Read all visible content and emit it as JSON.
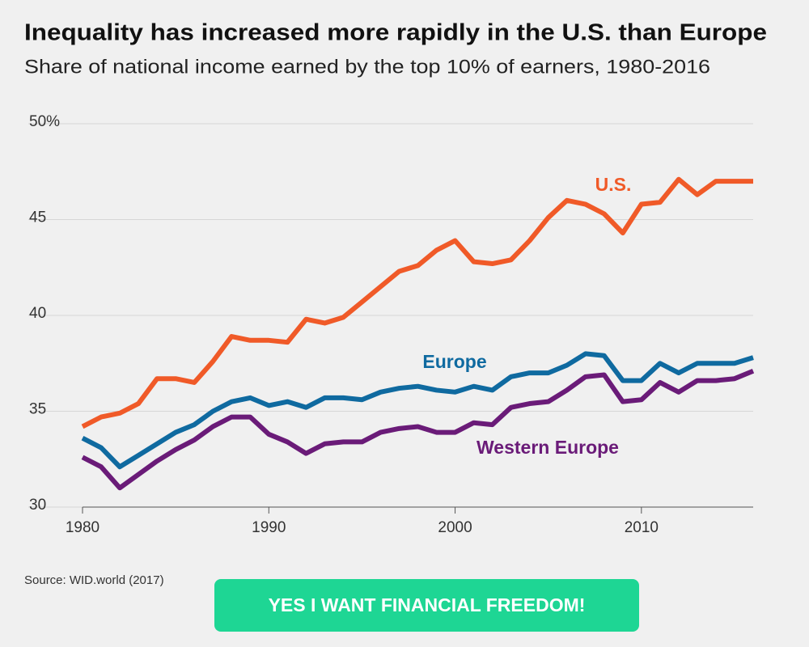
{
  "chart_data": {
    "type": "line",
    "title": "Inequality has increased more rapidly in the U.S. than Europe",
    "subtitle": "Share of national income earned by the top 10% of earners, 1980-2016",
    "source": "Source: WID.world (2017)",
    "x": [
      1980,
      1981,
      1982,
      1983,
      1984,
      1985,
      1986,
      1987,
      1988,
      1989,
      1990,
      1991,
      1992,
      1993,
      1994,
      1995,
      1996,
      1997,
      1998,
      1999,
      2000,
      2001,
      2002,
      2003,
      2004,
      2005,
      2006,
      2007,
      2008,
      2009,
      2010,
      2011,
      2012,
      2013,
      2014,
      2015,
      2016
    ],
    "series": [
      {
        "name": "U.S.",
        "color": "#f05a28",
        "values": [
          34.2,
          34.7,
          34.9,
          35.4,
          36.7,
          36.7,
          36.5,
          37.6,
          38.9,
          38.7,
          38.7,
          38.6,
          39.8,
          39.6,
          39.9,
          40.7,
          41.5,
          42.3,
          42.6,
          43.4,
          43.9,
          42.8,
          42.7,
          42.9,
          43.9,
          45.1,
          46.0,
          45.8,
          45.3,
          44.3,
          45.8,
          45.9,
          47.1,
          46.3,
          47.0,
          47.0,
          47.0
        ]
      },
      {
        "name": "Europe",
        "color": "#0f6aa0",
        "values": [
          33.6,
          33.1,
          32.1,
          32.7,
          33.3,
          33.9,
          34.3,
          35.0,
          35.5,
          35.7,
          35.3,
          35.5,
          35.2,
          35.7,
          35.7,
          35.6,
          36.0,
          36.2,
          36.3,
          36.1,
          36.0,
          36.3,
          36.1,
          36.8,
          37.0,
          37.0,
          37.4,
          38.0,
          37.9,
          36.6,
          36.6,
          37.5,
          37.0,
          37.5,
          37.5,
          37.5,
          37.8
        ]
      },
      {
        "name": "Western Europe",
        "color": "#6a1b78",
        "values": [
          32.6,
          32.1,
          31.0,
          31.7,
          32.4,
          33.0,
          33.5,
          34.2,
          34.7,
          34.7,
          33.8,
          33.4,
          32.8,
          33.3,
          33.4,
          33.4,
          33.9,
          34.1,
          34.2,
          33.9,
          33.9,
          34.4,
          34.3,
          35.2,
          35.4,
          35.5,
          36.1,
          36.8,
          36.9,
          35.5,
          35.6,
          36.5,
          36.0,
          36.6,
          36.6,
          36.7,
          37.1
        ]
      }
    ],
    "xlim": [
      1980,
      2016
    ],
    "xticks": [
      1980,
      1990,
      2000,
      2010
    ],
    "ylim": [
      30,
      50
    ],
    "yticks": [
      30,
      35,
      40,
      45,
      {
        "value": 50,
        "label": "50%"
      }
    ],
    "grid": true
  },
  "button": {
    "label": "YES I WANT FINANCIAL FREEDOM!"
  }
}
